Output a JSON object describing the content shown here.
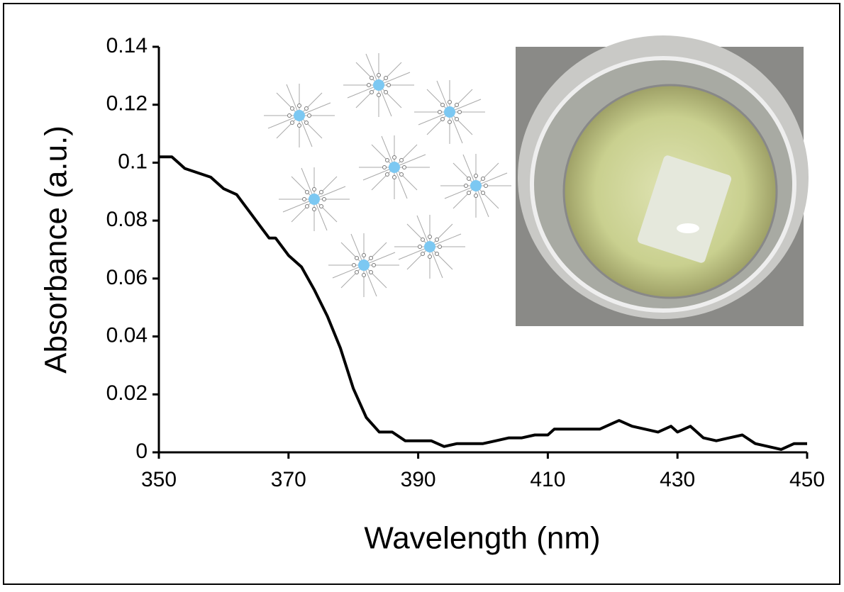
{
  "chart_data": {
    "type": "line",
    "x_label": "Wavelength (nm)",
    "y_label": "Absorbance (a.u.)",
    "x": [
      350,
      352,
      354,
      358,
      360,
      362,
      364,
      366,
      367,
      368,
      370,
      372,
      374,
      376,
      378,
      380,
      382,
      384,
      386,
      388,
      390,
      392,
      394,
      396,
      398,
      400,
      402,
      404,
      406,
      408,
      410,
      411,
      414,
      418,
      420,
      421,
      423,
      425,
      427,
      429,
      430,
      432,
      434,
      436,
      438,
      440,
      442,
      444,
      446,
      448,
      450
    ],
    "values": [
      0.102,
      0.102,
      0.098,
      0.095,
      0.091,
      0.089,
      0.083,
      0.077,
      0.074,
      0.074,
      0.068,
      0.064,
      0.056,
      0.047,
      0.036,
      0.022,
      0.012,
      0.007,
      0.007,
      0.004,
      0.004,
      0.004,
      0.002,
      0.003,
      0.003,
      0.003,
      0.004,
      0.005,
      0.005,
      0.006,
      0.006,
      0.008,
      0.008,
      0.008,
      0.01,
      0.011,
      0.009,
      0.008,
      0.007,
      0.009,
      0.007,
      0.009,
      0.005,
      0.004,
      0.005,
      0.006,
      0.003,
      0.002,
      0.001,
      0.003,
      0.003
    ],
    "color": "#000000",
    "xlim": [
      350,
      450
    ],
    "xticks": [
      350,
      370,
      390,
      410,
      430,
      450
    ],
    "ylim": [
      0,
      0.14
    ],
    "yticks": [
      0,
      0.02,
      0.04,
      0.06,
      0.08,
      0.1,
      0.12,
      0.14
    ],
    "grid": false
  }
}
